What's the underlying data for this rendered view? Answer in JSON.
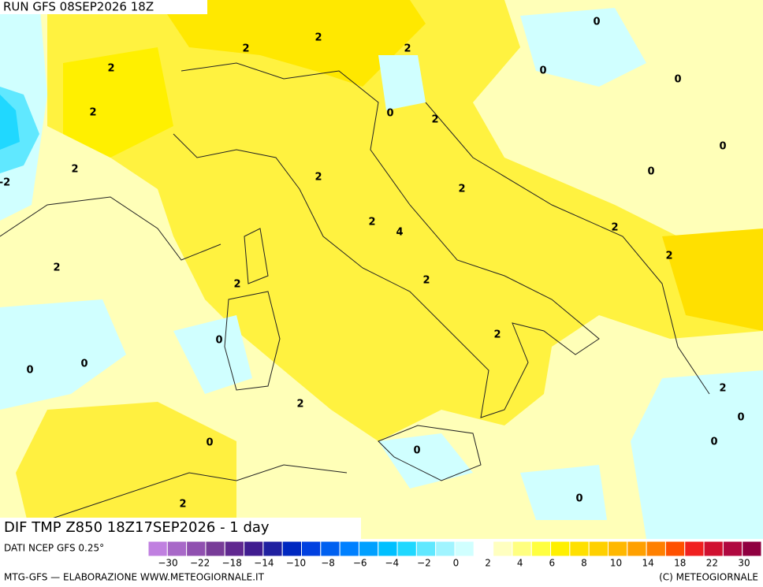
{
  "header": {
    "run": "RUN GFS 08SEP2026 18Z"
  },
  "map": {
    "field_label": "DIF TMP Z850 18Z17SEP2026 - 1 day",
    "contour_labels": [
      "2",
      "2",
      "2",
      "2",
      "0",
      "0",
      "0",
      "2",
      "0",
      "2",
      "0",
      "2",
      "0",
      "-2",
      "2",
      "2",
      "2",
      "4",
      "2",
      "2",
      "2",
      "2",
      "2",
      "0",
      "2",
      "0",
      "0",
      "2",
      "2",
      "0",
      "0",
      "0",
      "0",
      "0",
      "2"
    ]
  },
  "legend": {
    "source": "DATI NCEP GFS 0.25°",
    "colors": [
      "#c080e0",
      "#a868c8",
      "#9050b0",
      "#783c98",
      "#602890",
      "#401c90",
      "#2020a0",
      "#0028c0",
      "#0040e0",
      "#0060f0",
      "#0080ff",
      "#00a0ff",
      "#00c0ff",
      "#20d8ff",
      "#60e8ff",
      "#a0f4ff",
      "#d0ffff",
      "#ffffff",
      "#ffffc0",
      "#ffff80",
      "#ffff40",
      "#fff000",
      "#ffe000",
      "#ffd000",
      "#ffb800",
      "#ffa000",
      "#ff8000",
      "#ff5000",
      "#f02020",
      "#d01030",
      "#b00840",
      "#900040"
    ],
    "tick_labels": [
      "−30",
      "−22",
      "−18",
      "−14",
      "−10",
      "−8",
      "−6",
      "−4",
      "−2",
      "0",
      "2",
      "4",
      "6",
      "8",
      "10",
      "14",
      "18",
      "22",
      "30"
    ]
  },
  "footer": {
    "left": "MTG-GFS — ELABORAZIONE WWW.METEOGIORNALE.IT",
    "right": "(C) METEOGIORNALE"
  }
}
